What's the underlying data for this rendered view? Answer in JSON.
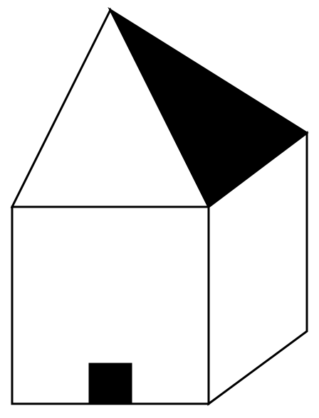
{
  "figure": {
    "subject": "house",
    "line_color": "#000000",
    "fill_color": "#000000",
    "background_color": "#ffffff"
  }
}
